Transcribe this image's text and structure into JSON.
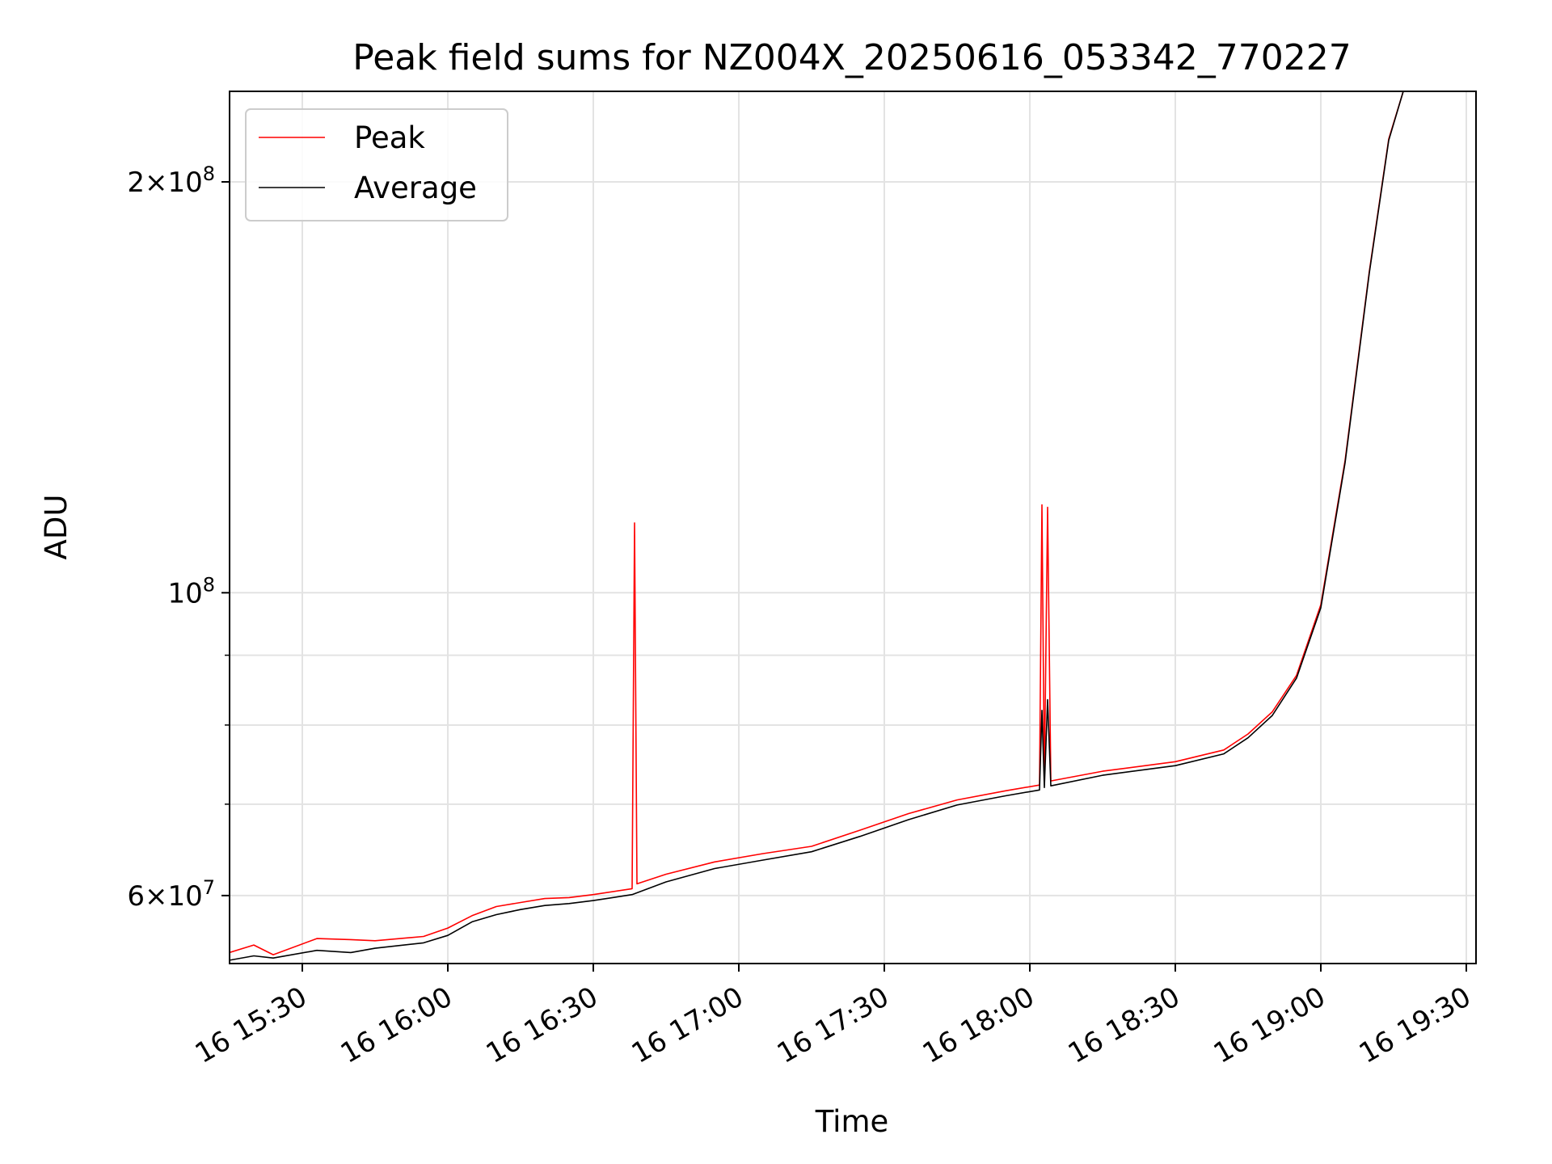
{
  "chart_data": {
    "type": "line",
    "title": "Peak field sums for NZ004X_20250616_053342_770227",
    "xlabel": "Time",
    "ylabel": "ADU",
    "x_axis_kind": "time",
    "y_scale": "log",
    "ylim": [
      53500000,
      233000000
    ],
    "xlim": [
      "2025-06-16 15:15",
      "2025-06-16 19:32"
    ],
    "grid": true,
    "legend_position": "top-left",
    "x_ticks": [
      {
        "t": "2025-06-16 15:30",
        "label": "16 15:30"
      },
      {
        "t": "2025-06-16 16:00",
        "label": "16 16:00"
      },
      {
        "t": "2025-06-16 16:30",
        "label": "16 16:30"
      },
      {
        "t": "2025-06-16 17:00",
        "label": "16 17:00"
      },
      {
        "t": "2025-06-16 17:30",
        "label": "16 17:30"
      },
      {
        "t": "2025-06-16 18:00",
        "label": "16 18:00"
      },
      {
        "t": "2025-06-16 18:30",
        "label": "16 18:30"
      },
      {
        "t": "2025-06-16 19:00",
        "label": "16 19:00"
      },
      {
        "t": "2025-06-16 19:30",
        "label": "16 19:30"
      }
    ],
    "y_major_ticks": [
      {
        "value": 200000000,
        "mant": "2",
        "exp": "8"
      },
      {
        "value": 100000000,
        "mant": "",
        "exp": "8"
      },
      {
        "value": 60000000,
        "mant": "6",
        "exp": "7"
      }
    ],
    "y_minor_ticks": [
      70000000,
      80000000,
      90000000
    ],
    "series": [
      {
        "name": "Peak",
        "color": "#ff0000",
        "points": [
          [
            "2025-06-16 15:15",
            54500000
          ],
          [
            "2025-06-16 15:20",
            55200000
          ],
          [
            "2025-06-16 15:24",
            54300000
          ],
          [
            "2025-06-16 15:33",
            55800000
          ],
          [
            "2025-06-16 15:40",
            55700000
          ],
          [
            "2025-06-16 15:45",
            55600000
          ],
          [
            "2025-06-16 15:55",
            56000000
          ],
          [
            "2025-06-16 16:00",
            56800000
          ],
          [
            "2025-06-16 16:05",
            58000000
          ],
          [
            "2025-06-16 16:10",
            58900000
          ],
          [
            "2025-06-16 16:15",
            59300000
          ],
          [
            "2025-06-16 16:20",
            59700000
          ],
          [
            "2025-06-16 16:25",
            59800000
          ],
          [
            "2025-06-16 16:30",
            60100000
          ],
          [
            "2025-06-16 16:38",
            60700000
          ],
          [
            "2025-06-16 16:38:30",
            112500000
          ],
          [
            "2025-06-16 16:39",
            61200000
          ],
          [
            "2025-06-16 16:45",
            62200000
          ],
          [
            "2025-06-16 16:55",
            63500000
          ],
          [
            "2025-06-16 17:05",
            64400000
          ],
          [
            "2025-06-16 17:15",
            65200000
          ],
          [
            "2025-06-16 17:25",
            67000000
          ],
          [
            "2025-06-16 17:35",
            68900000
          ],
          [
            "2025-06-16 17:45",
            70500000
          ],
          [
            "2025-06-16 17:55",
            71600000
          ],
          [
            "2025-06-16 18:02",
            72300000
          ],
          [
            "2025-06-16 18:02:30",
            116000000
          ],
          [
            "2025-06-16 18:03",
            72900000
          ],
          [
            "2025-06-16 18:03:40",
            115500000
          ],
          [
            "2025-06-16 18:04:20",
            72800000
          ],
          [
            "2025-06-16 18:15",
            74000000
          ],
          [
            "2025-06-16 18:30",
            75200000
          ],
          [
            "2025-06-16 18:40",
            76700000
          ],
          [
            "2025-06-16 18:45",
            78800000
          ],
          [
            "2025-06-16 18:50",
            81800000
          ],
          [
            "2025-06-16 18:55",
            87000000
          ],
          [
            "2025-06-16 19:00",
            98000000
          ],
          [
            "2025-06-16 19:05",
            125000000
          ],
          [
            "2025-06-16 19:10",
            172000000
          ],
          [
            "2025-06-16 19:14",
            215000000
          ],
          [
            "2025-06-16 19:17",
            233000000
          ]
        ]
      },
      {
        "name": "Average",
        "color": "#000000",
        "points": [
          [
            "2025-06-16 15:15",
            53800000
          ],
          [
            "2025-06-16 15:20",
            54200000
          ],
          [
            "2025-06-16 15:24",
            54000000
          ],
          [
            "2025-06-16 15:33",
            54700000
          ],
          [
            "2025-06-16 15:40",
            54500000
          ],
          [
            "2025-06-16 15:45",
            54900000
          ],
          [
            "2025-06-16 15:55",
            55400000
          ],
          [
            "2025-06-16 16:00",
            56100000
          ],
          [
            "2025-06-16 16:05",
            57400000
          ],
          [
            "2025-06-16 16:10",
            58100000
          ],
          [
            "2025-06-16 16:15",
            58600000
          ],
          [
            "2025-06-16 16:20",
            59000000
          ],
          [
            "2025-06-16 16:25",
            59200000
          ],
          [
            "2025-06-16 16:30",
            59500000
          ],
          [
            "2025-06-16 16:38",
            60100000
          ],
          [
            "2025-06-16 16:45",
            61400000
          ],
          [
            "2025-06-16 16:55",
            62800000
          ],
          [
            "2025-06-16 17:05",
            63700000
          ],
          [
            "2025-06-16 17:15",
            64600000
          ],
          [
            "2025-06-16 17:25",
            66300000
          ],
          [
            "2025-06-16 17:35",
            68200000
          ],
          [
            "2025-06-16 17:45",
            69900000
          ],
          [
            "2025-06-16 17:55",
            71000000
          ],
          [
            "2025-06-16 18:02",
            71700000
          ],
          [
            "2025-06-16 18:02:30",
            82000000
          ],
          [
            "2025-06-16 18:03",
            72000000
          ],
          [
            "2025-06-16 18:03:40",
            83500000
          ],
          [
            "2025-06-16 18:04:20",
            72200000
          ],
          [
            "2025-06-16 18:15",
            73500000
          ],
          [
            "2025-06-16 18:30",
            74700000
          ],
          [
            "2025-06-16 18:40",
            76200000
          ],
          [
            "2025-06-16 18:45",
            78300000
          ],
          [
            "2025-06-16 18:50",
            81300000
          ],
          [
            "2025-06-16 18:55",
            86600000
          ],
          [
            "2025-06-16 19:00",
            97500000
          ],
          [
            "2025-06-16 19:05",
            124500000
          ],
          [
            "2025-06-16 19:10",
            171500000
          ],
          [
            "2025-06-16 19:14",
            214500000
          ],
          [
            "2025-06-16 19:17",
            233000000
          ]
        ]
      }
    ]
  }
}
